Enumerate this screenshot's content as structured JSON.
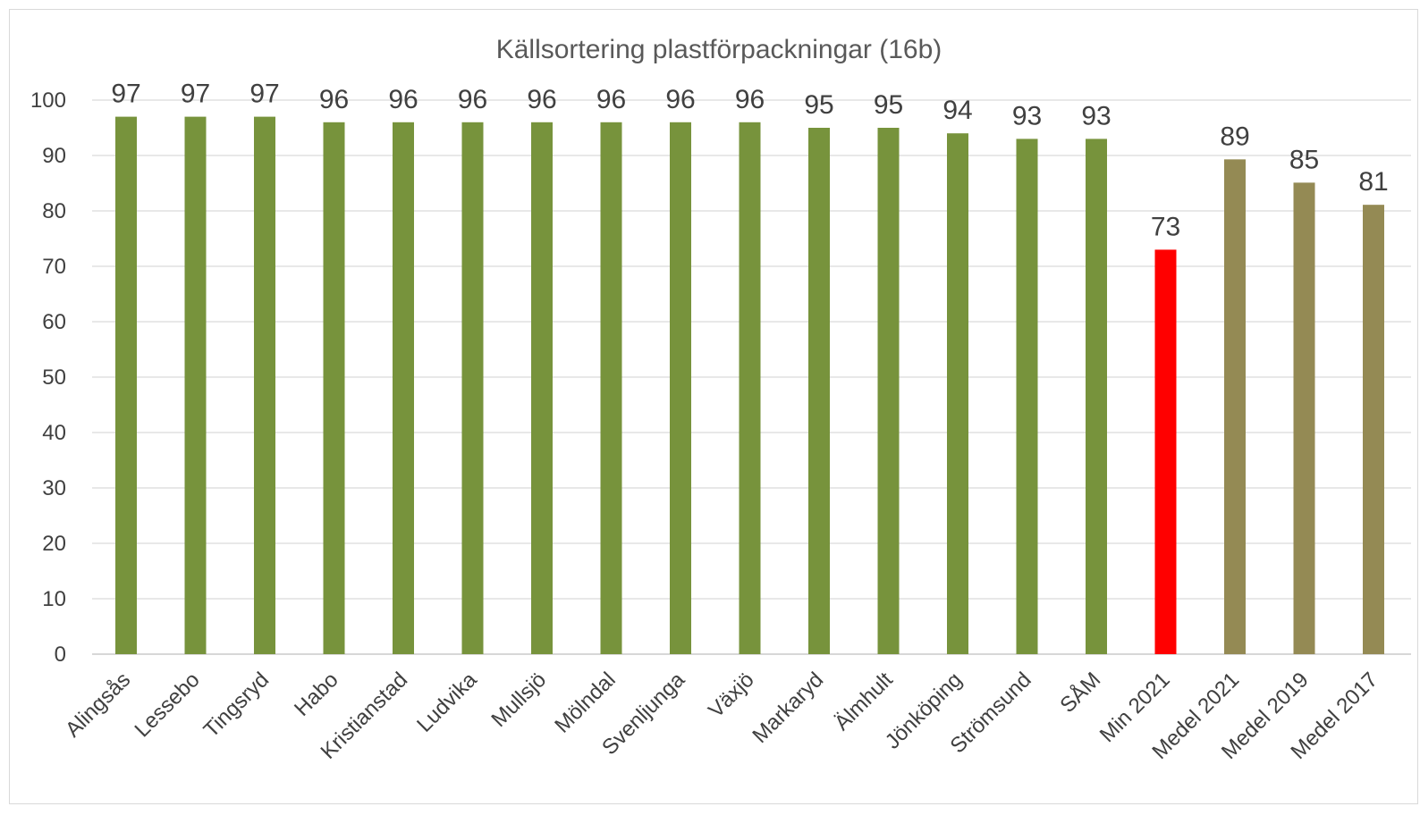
{
  "chart_data": {
    "type": "bar",
    "title": "Källsortering plastförpackningar (16b)",
    "xlabel": "",
    "ylabel": "",
    "ylim": [
      0,
      100
    ],
    "yticks": [
      0,
      10,
      20,
      30,
      40,
      50,
      60,
      70,
      80,
      90,
      100
    ],
    "grid": true,
    "legend": "none",
    "categories": [
      "Alingsås",
      "Lessebo",
      "Tingsryd",
      "Habo",
      "Kristianstad",
      "Ludvika",
      "Mullsjö",
      "Mölndal",
      "Svenljunga",
      "Växjö",
      "Markaryd",
      "Älmhult",
      "Jönköping",
      "Strömsund",
      "SÅM",
      "Min 2021",
      "Medel 2021",
      "Medel 2019",
      "Medel 2017"
    ],
    "values": [
      97,
      97,
      97,
      96,
      96,
      96,
      96,
      96,
      96,
      96,
      95,
      95,
      94,
      93,
      93,
      73,
      89.3,
      85.1,
      81.1
    ],
    "data_labels": [
      "97",
      "97",
      "97",
      "96",
      "96",
      "96",
      "96",
      "96",
      "96",
      "96",
      "95",
      "95",
      "94",
      "93",
      "93",
      "73",
      "89",
      "85",
      "81"
    ],
    "bar_colors": [
      "#77933c",
      "#77933c",
      "#77933c",
      "#77933c",
      "#77933c",
      "#77933c",
      "#77933c",
      "#77933c",
      "#77933c",
      "#77933c",
      "#77933c",
      "#77933c",
      "#77933c",
      "#77933c",
      "#77933c",
      "#ff0000",
      "#948a54",
      "#948a54",
      "#948a54"
    ]
  }
}
